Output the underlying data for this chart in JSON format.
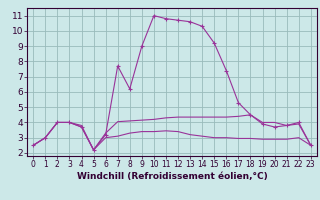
{
  "xlabel": "Windchill (Refroidissement éolien,°C)",
  "bg_color": "#cce8e8",
  "grid_color": "#99bbbb",
  "line_color": "#993399",
  "x_ticks": [
    0,
    1,
    2,
    3,
    4,
    5,
    6,
    7,
    8,
    9,
    10,
    11,
    12,
    13,
    14,
    15,
    16,
    17,
    18,
    19,
    20,
    21,
    22,
    23
  ],
  "y_ticks": [
    2,
    3,
    4,
    5,
    6,
    7,
    8,
    9,
    10,
    11
  ],
  "ylim": [
    1.8,
    11.5
  ],
  "xlim": [
    -0.5,
    23.5
  ],
  "series1_x": [
    0,
    1,
    2,
    3,
    4,
    5,
    6,
    7,
    8,
    9,
    10,
    11,
    12,
    13,
    14,
    15,
    16,
    17,
    18,
    19,
    20,
    21,
    22,
    23
  ],
  "series1_y": [
    2.5,
    3.0,
    4.0,
    4.0,
    3.7,
    2.2,
    3.2,
    7.7,
    6.2,
    9.0,
    11.0,
    10.8,
    10.7,
    10.6,
    10.3,
    9.2,
    7.4,
    5.3,
    4.5,
    3.9,
    3.7,
    3.8,
    4.0,
    2.5
  ],
  "series2_x": [
    0,
    1,
    2,
    3,
    4,
    5,
    6,
    7,
    8,
    9,
    10,
    11,
    12,
    13,
    14,
    15,
    16,
    17,
    18,
    19,
    20,
    21,
    22,
    23
  ],
  "series2_y": [
    2.5,
    3.0,
    4.0,
    4.0,
    3.8,
    2.2,
    3.3,
    4.05,
    4.1,
    4.15,
    4.2,
    4.3,
    4.35,
    4.35,
    4.35,
    4.35,
    4.35,
    4.4,
    4.5,
    4.0,
    4.0,
    3.8,
    3.9,
    2.5
  ],
  "series3_x": [
    0,
    1,
    2,
    3,
    4,
    5,
    6,
    7,
    8,
    9,
    10,
    11,
    12,
    13,
    14,
    15,
    16,
    17,
    18,
    19,
    20,
    21,
    22,
    23
  ],
  "series3_y": [
    2.5,
    3.0,
    4.0,
    4.0,
    3.7,
    2.2,
    3.0,
    3.1,
    3.3,
    3.4,
    3.4,
    3.45,
    3.4,
    3.2,
    3.1,
    3.0,
    3.0,
    2.95,
    2.95,
    2.9,
    2.9,
    2.9,
    3.0,
    2.5
  ],
  "xlabel_fontsize": 6.5,
  "tick_fontsize_x": 5.5,
  "tick_fontsize_y": 6.5
}
